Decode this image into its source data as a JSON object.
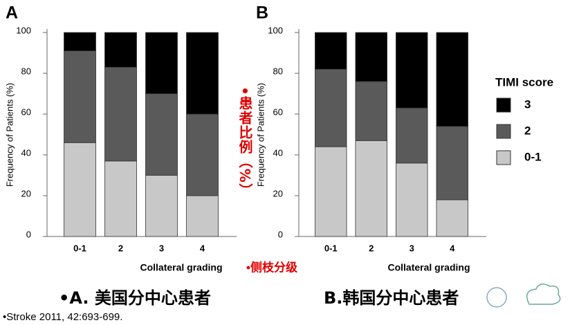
{
  "chart_data": [
    {
      "type": "stacked_bar",
      "title": "A",
      "caption": "•A. 美国分中心患者",
      "xlabel": "Collateral grading",
      "ylabel": "Frequency of Patients (%)",
      "categories": [
        "0-1",
        "2",
        "3",
        "4"
      ],
      "series": [
        {
          "name": "0-1",
          "color": "#c8c8c8",
          "values": [
            46,
            37,
            30,
            20
          ]
        },
        {
          "name": "2",
          "color": "#5a5a5a",
          "values": [
            45,
            46,
            40,
            40
          ]
        },
        {
          "name": "3",
          "color": "#000000",
          "values": [
            9,
            17,
            30,
            40
          ]
        }
      ],
      "ylim": [
        0,
        100
      ],
      "yticks": [
        0,
        20,
        40,
        60,
        80,
        100
      ],
      "legend": false
    },
    {
      "type": "stacked_bar",
      "title": "B",
      "caption": "B.韩国分中心患者",
      "xlabel": "Collateral grading",
      "ylabel": "Frequency of Patients (%)",
      "categories": [
        "0-1",
        "2",
        "3",
        "4"
      ],
      "series": [
        {
          "name": "0-1",
          "color": "#c8c8c8",
          "values": [
            44,
            47,
            36,
            18
          ]
        },
        {
          "name": "2",
          "color": "#5a5a5a",
          "values": [
            38,
            29,
            27,
            36
          ]
        },
        {
          "name": "3",
          "color": "#000000",
          "values": [
            18,
            24,
            37,
            46
          ]
        }
      ],
      "ylim": [
        0,
        100
      ],
      "yticks": [
        0,
        20,
        40,
        60,
        80,
        100
      ],
      "legend": true,
      "legend_title": "TIMI score"
    }
  ],
  "annotations": {
    "y_note": "•患者比例（%）",
    "x_note": "•侧枝分级",
    "source": "•Stroke 2011, 42:693-699."
  }
}
